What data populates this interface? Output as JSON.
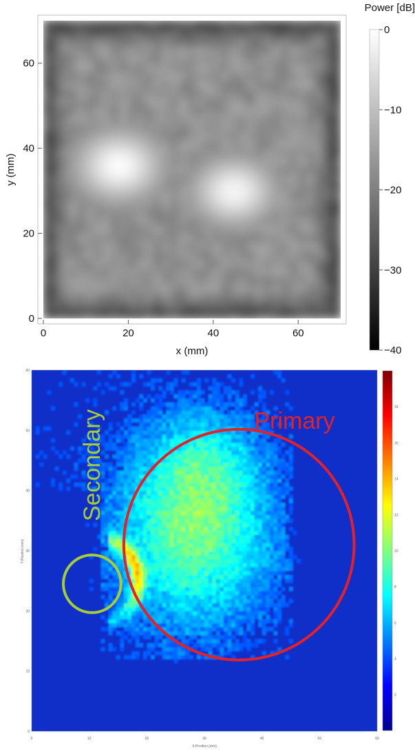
{
  "chart_data": [
    {
      "type": "heatmap",
      "xlabel": "x (mm)",
      "ylabel": "y (mm)",
      "xlim": [
        0,
        70
      ],
      "ylim": [
        0,
        70
      ],
      "x_ticks": [
        0,
        20,
        40,
        60
      ],
      "y_ticks": [
        0,
        20,
        40,
        60
      ],
      "colorbar": {
        "label": "Power [dB]",
        "range": [
          -40,
          0
        ],
        "ticks": [
          0,
          -10,
          -20,
          -30,
          -40
        ],
        "colormap": "grayscale",
        "low_color": "#000000",
        "high_color": "#ffffff"
      },
      "hotspots": [
        {
          "x": 18,
          "y": 36,
          "level_db": 0
        },
        {
          "x": 45,
          "y": 30,
          "level_db": -1
        }
      ],
      "background_level_db": -16
    },
    {
      "type": "heatmap",
      "xlabel": "X-Position (mm)",
      "ylabel": "Y-Position (mm)",
      "xlim": [
        0,
        60
      ],
      "ylim": [
        0,
        60
      ],
      "x_ticks": [
        0,
        10,
        20,
        30,
        40,
        50,
        60
      ],
      "y_ticks": [
        0,
        10,
        20,
        30,
        40,
        50,
        60
      ],
      "colormap": "jet",
      "colorbar_ticks": [
        "2",
        "4",
        "6",
        "8",
        "10",
        "12",
        "14",
        "16",
        "18"
      ],
      "annotations": [
        {
          "label": "Primary",
          "shape": "circle",
          "color": "#e3212a",
          "center": [
            36,
            31
          ],
          "radius": 20
        },
        {
          "label": "Secondary",
          "shape": "circle",
          "color": "#a6cc3a",
          "center": [
            10.5,
            24.5
          ],
          "radius": 5
        }
      ]
    }
  ]
}
